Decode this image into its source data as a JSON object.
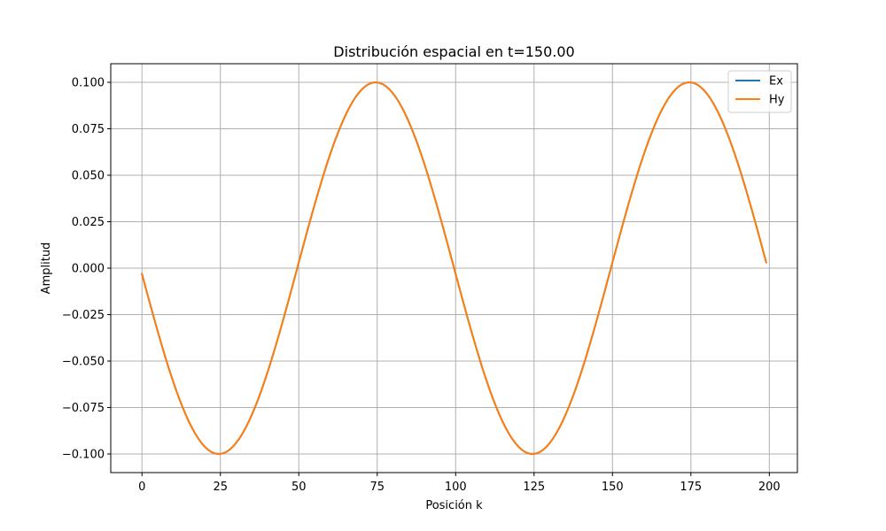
{
  "chart_data": {
    "type": "line",
    "title": "Distribución espacial en t=150.00",
    "xlabel": "Posición k",
    "ylabel": "Amplitud",
    "xlim": [
      -9.95,
      208.95
    ],
    "ylim": [
      -0.11,
      0.11
    ],
    "x_ticks": [
      0,
      25,
      50,
      75,
      100,
      125,
      150,
      175,
      200
    ],
    "x_tick_labels": [
      "0",
      "25",
      "50",
      "75",
      "100",
      "125",
      "150",
      "175",
      "200"
    ],
    "y_ticks": [
      -0.1,
      -0.075,
      -0.05,
      -0.025,
      0.0,
      0.025,
      0.05,
      0.075,
      0.1
    ],
    "y_tick_labels": [
      "−0.100",
      "−0.075",
      "−0.050",
      "−0.025",
      "0.000",
      "0.025",
      "0.050",
      "0.075",
      "0.100"
    ],
    "grid": true,
    "legend_position": "top-right",
    "x_range": [
      0,
      199
    ],
    "series": [
      {
        "name": "Ex",
        "color": "#1f77b4",
        "function": "amplitude * sin(2*pi*(k - phase)/period)",
        "amplitude": 0.1,
        "period": 100,
        "phase": 0.5,
        "sign": -1
      },
      {
        "name": "Hy",
        "color": "#ff7f0e",
        "function": "amplitude * sin(2*pi*(k - phase)/period)",
        "amplitude": 0.1,
        "period": 100,
        "phase": 0.5,
        "sign": -1
      }
    ]
  }
}
